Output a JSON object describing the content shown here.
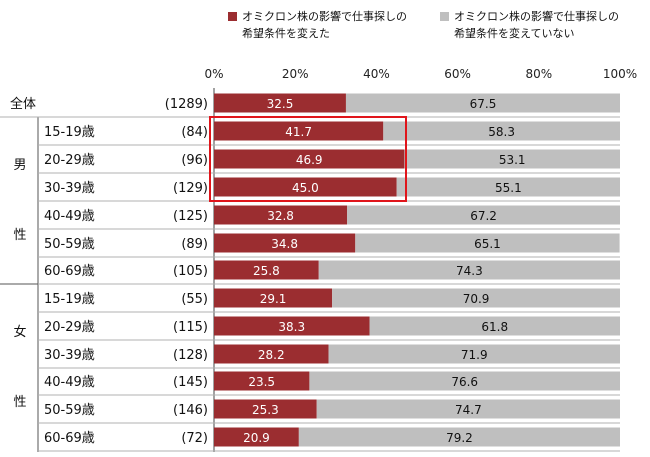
{
  "chart_data": {
    "type": "bar",
    "stacked": true,
    "orientation": "horizontal",
    "xlim": [
      0,
      100
    ],
    "x_ticks": [
      "0%",
      "20%",
      "40%",
      "60%",
      "80%",
      "100%"
    ],
    "grid": false,
    "legend_position": "top",
    "series": [
      {
        "name": "オミクロン株の影響で仕事探しの希望条件を変えた",
        "color": "#9b2d30",
        "values": [
          32.5,
          41.7,
          46.9,
          45.0,
          32.8,
          34.8,
          25.8,
          29.1,
          38.3,
          28.2,
          23.5,
          25.3,
          20.9
        ]
      },
      {
        "name": "オミクロン株の影響で仕事探しの希望条件を変えていない",
        "color": "#bfbfbf",
        "values": [
          67.5,
          58.3,
          53.1,
          55.1,
          67.2,
          65.1,
          74.3,
          70.9,
          61.8,
          71.9,
          76.6,
          74.7,
          79.2
        ]
      }
    ],
    "groups": [
      {
        "label": "",
        "rows": [
          {
            "category": "全体",
            "n": "(1289)"
          }
        ]
      },
      {
        "label": "男性",
        "rows": [
          {
            "category": "15-19歳",
            "n": "(84)"
          },
          {
            "category": "20-29歳",
            "n": "(96)"
          },
          {
            "category": "30-39歳",
            "n": "(129)"
          },
          {
            "category": "40-49歳",
            "n": "(125)"
          },
          {
            "category": "50-59歳",
            "n": "(89)"
          },
          {
            "category": "60-69歳",
            "n": "(105)"
          }
        ]
      },
      {
        "label": "女性",
        "rows": [
          {
            "category": "15-19歳",
            "n": "(55)"
          },
          {
            "category": "20-29歳",
            "n": "(115)"
          },
          {
            "category": "30-39歳",
            "n": "(128)"
          },
          {
            "category": "40-49歳",
            "n": "(145)"
          },
          {
            "category": "50-59歳",
            "n": "(146)"
          },
          {
            "category": "60-69歳",
            "n": "(72)"
          }
        ]
      }
    ],
    "highlight_color": "#e0151b"
  },
  "legend": {
    "changed": {
      "line1": "オミクロン株の影響で仕事探しの",
      "line2": "希望条件を変えた"
    },
    "unchanged": {
      "line1": "オミクロン株の影響で仕事探しの",
      "line2": "希望条件を変えていない"
    }
  }
}
